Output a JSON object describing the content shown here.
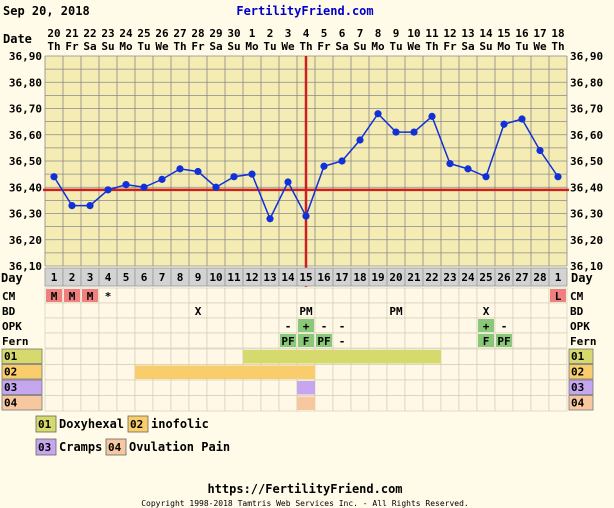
{
  "header": {
    "date": "Sep 20, 2018",
    "brand": "FertilityFriend.com"
  },
  "labels": {
    "date_row": "Date",
    "day_row": "Day",
    "rows": [
      "CM",
      "BD",
      "OPK",
      "Fern",
      "01",
      "02",
      "03",
      "04"
    ]
  },
  "footer": {
    "url": "https://FertilityFriend.com",
    "copyright": "Copyright 1998-2018 Tamtris Web Services Inc. - All Rights Reserved."
  },
  "legend": [
    {
      "code": "01",
      "label": "Doxyhexal",
      "color": "#d6d96b"
    },
    {
      "code": "02",
      "label": "inofolic",
      "color": "#f9cd6b"
    },
    {
      "code": "03",
      "label": "Cramps",
      "color": "#c5a6ef"
    },
    {
      "code": "04",
      "label": "Ovulation Pain",
      "color": "#f7c8a0"
    }
  ],
  "colors": {
    "page_bg": "#fffbe8",
    "plot_bg": "#f5ecb4",
    "grid": "#8a8a8a",
    "line": "#1030d8",
    "coverline": "#cc2020",
    "gray_cell": "#d3d3d3",
    "cm_red": "#f08080",
    "green": "#88c878",
    "row_bg": "#fff8e6"
  },
  "chart_data": {
    "type": "line",
    "xlabel": "Day",
    "ylabel": "",
    "ylim": [
      36.1,
      36.9
    ],
    "yticks": [
      "36,10",
      "36,20",
      "36,30",
      "36,40",
      "36,50",
      "36,60",
      "36,70",
      "36,80",
      "36,90"
    ],
    "grid": true,
    "coverline": 36.39,
    "ovulation_day": 15,
    "dates": [
      "20",
      "21",
      "22",
      "23",
      "24",
      "25",
      "26",
      "27",
      "28",
      "29",
      "30",
      "1",
      "2",
      "3",
      "4",
      "5",
      "6",
      "7",
      "8",
      "9",
      "10",
      "11",
      "12",
      "13",
      "14",
      "15",
      "16",
      "17",
      "18"
    ],
    "weekdays": [
      "Th",
      "Fr",
      "Sa",
      "Su",
      "Mo",
      "Tu",
      "We",
      "Th",
      "Fr",
      "Sa",
      "Su",
      "Mo",
      "Tu",
      "We",
      "Th",
      "Fr",
      "Sa",
      "Su",
      "Mo",
      "Tu",
      "We",
      "Th",
      "Fr",
      "Sa",
      "Su",
      "Mo",
      "Tu",
      "We",
      "Th"
    ],
    "days": [
      "1",
      "2",
      "3",
      "4",
      "5",
      "6",
      "7",
      "8",
      "9",
      "10",
      "11",
      "12",
      "13",
      "14",
      "15",
      "16",
      "17",
      "18",
      "19",
      "20",
      "21",
      "22",
      "23",
      "24",
      "25",
      "26",
      "27",
      "28",
      "1"
    ],
    "series": [
      {
        "values": [
          36.44,
          36.33,
          36.33,
          36.39,
          36.41,
          36.4,
          36.43,
          36.47,
          36.46,
          36.4,
          36.44,
          36.45,
          36.28,
          36.42,
          36.29,
          36.48,
          36.5,
          36.58,
          36.68,
          36.61,
          36.61,
          36.67,
          36.49,
          36.47,
          36.44,
          36.64,
          36.66,
          36.54,
          36.44
        ]
      }
    ],
    "cm": [
      {
        "day": 1,
        "text": "M",
        "style": "red"
      },
      {
        "day": 2,
        "text": "M",
        "style": "red"
      },
      {
        "day": 3,
        "text": "M",
        "style": "red"
      },
      {
        "day": 4,
        "text": "*",
        "style": "plain"
      },
      {
        "day": 29,
        "text": "L",
        "style": "red"
      }
    ],
    "bd": [
      {
        "day": 9,
        "text": "X"
      },
      {
        "day": 15,
        "text": "PM"
      },
      {
        "day": 20,
        "text": "PM"
      },
      {
        "day": 25,
        "text": "X"
      }
    ],
    "opk": [
      {
        "day": 14,
        "text": "-",
        "style": "plain"
      },
      {
        "day": 15,
        "text": "+",
        "style": "green"
      },
      {
        "day": 16,
        "text": "-",
        "style": "plain"
      },
      {
        "day": 17,
        "text": "-",
        "style": "plain"
      },
      {
        "day": 25,
        "text": "+",
        "style": "green"
      },
      {
        "day": 26,
        "text": "-",
        "style": "plain"
      }
    ],
    "fern": [
      {
        "day": 14,
        "text": "PF",
        "style": "green"
      },
      {
        "day": 15,
        "text": "F",
        "style": "green"
      },
      {
        "day": 16,
        "text": "PF",
        "style": "green"
      },
      {
        "day": 17,
        "text": "-",
        "style": "plain"
      },
      {
        "day": 25,
        "text": "F",
        "style": "green"
      },
      {
        "day": 26,
        "text": "PF",
        "style": "green"
      }
    ],
    "custom": [
      {
        "code": "01",
        "from": 12,
        "to": 22
      },
      {
        "code": "02",
        "from": 6,
        "to": 15
      },
      {
        "code": "03",
        "from": 15,
        "to": 15
      },
      {
        "code": "04",
        "from": 15,
        "to": 15
      }
    ]
  }
}
